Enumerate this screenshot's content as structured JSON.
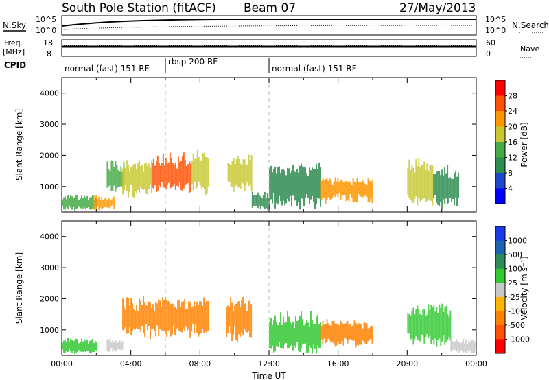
{
  "header": {
    "title": "South Pole Station (fitACF)",
    "beam": "Beam 07",
    "date": "27/May/2013"
  },
  "status_panels": {
    "nsky_label": "N.Sky",
    "nsearch_label": "N.Search",
    "freq_label_1": "Freq.",
    "freq_label_2": "[MHz]",
    "nave_label": "Nave",
    "cpid_label": "CPID",
    "left_ticks_top": [
      "10^5",
      "10^0"
    ],
    "right_ticks_top": [
      "10^5",
      "10^0"
    ],
    "left_ticks_freq": [
      "18",
      "8"
    ],
    "right_ticks_freq": [
      "60",
      "0"
    ],
    "cpid_segments": [
      {
        "label": "normal (fast) 151 RF",
        "start_h": 0,
        "end_h": 6
      },
      {
        "label": "rbsp 200 RF",
        "start_h": 6,
        "end_h": 12
      },
      {
        "label": "normal (fast) 151 RF",
        "start_h": 12,
        "end_h": 24
      }
    ]
  },
  "colors": {
    "power_scale": [
      "#0000ff",
      "#1e46c8",
      "#2d8c50",
      "#46aa46",
      "#c8c832",
      "#ff9600",
      "#ff5000",
      "#ff0000"
    ],
    "velocity_scale": [
      "#1a3ce6",
      "#1e64b4",
      "#2d8c55",
      "#32c832",
      "#c8c8c8",
      "#ffb400",
      "#ff8200",
      "#ff5000",
      "#ff0000"
    ]
  },
  "chart_data": [
    {
      "type": "heatmap",
      "name": "power",
      "xlabel": "",
      "ylabel": "Slant Range [km]",
      "xlim": [
        0,
        24
      ],
      "ylim": [
        180,
        4500
      ],
      "yticks": [
        "1000",
        "2000",
        "3000",
        "4000"
      ],
      "colorbar_label": "Power [dB]",
      "colorbar_ticks": [
        "28",
        "24",
        "20",
        "16",
        "12",
        "8",
        "4"
      ],
      "colorbar_range": [
        0,
        32
      ],
      "regions": [
        {
          "t0": 0.0,
          "t1": 2.0,
          "r0": 250,
          "r1": 700,
          "level": 12
        },
        {
          "t0": 1.8,
          "t1": 3.0,
          "r0": 250,
          "r1": 700,
          "level": 22
        },
        {
          "t0": 2.6,
          "t1": 3.6,
          "r0": 800,
          "r1": 1800,
          "level": 14
        },
        {
          "t0": 3.5,
          "t1": 5.2,
          "r0": 700,
          "r1": 1800,
          "level": 18
        },
        {
          "t0": 5.2,
          "t1": 7.5,
          "r0": 800,
          "r1": 2000,
          "level": 24
        },
        {
          "t0": 7.5,
          "t1": 8.5,
          "r0": 800,
          "r1": 2100,
          "level": 16
        },
        {
          "t0": 9.6,
          "t1": 11.0,
          "r0": 800,
          "r1": 2000,
          "level": 18
        },
        {
          "t0": 11.0,
          "t1": 12.0,
          "r0": 250,
          "r1": 800,
          "level": 10
        },
        {
          "t0": 12.0,
          "t1": 15.0,
          "r0": 300,
          "r1": 1800,
          "level": 8
        },
        {
          "t0": 15.0,
          "t1": 18.0,
          "r0": 500,
          "r1": 1300,
          "level": 20
        },
        {
          "t0": 20.0,
          "t1": 21.5,
          "r0": 500,
          "r1": 1800,
          "level": 16
        },
        {
          "t0": 21.5,
          "t1": 23.0,
          "r0": 300,
          "r1": 1600,
          "level": 10
        }
      ]
    },
    {
      "type": "heatmap",
      "name": "velocity",
      "xlabel": "Time UT",
      "ylabel": "Slant Range [km]",
      "xlim": [
        0,
        24
      ],
      "ylim": [
        180,
        4500
      ],
      "xticks": [
        "00:00",
        "04:00",
        "08:00",
        "12:00",
        "16:00",
        "20:00",
        "00:00"
      ],
      "yticks": [
        "1000",
        "2000",
        "3000",
        "4000"
      ],
      "colorbar_label": "Velocity [m s⁻¹]",
      "colorbar_ticks": [
        "1000",
        "500",
        "100",
        "25",
        "-25",
        "-100",
        "-500",
        "-1000"
      ],
      "regions": [
        {
          "t0": 0.0,
          "t1": 2.0,
          "r0": 250,
          "r1": 700,
          "level": 100
        },
        {
          "t0": 2.6,
          "t1": 3.5,
          "r0": 300,
          "r1": 700,
          "level": 25
        },
        {
          "t0": 3.5,
          "t1": 8.5,
          "r0": 800,
          "r1": 2000,
          "level": -300
        },
        {
          "t0": 9.5,
          "t1": 11.0,
          "r0": 700,
          "r1": 2000,
          "level": -250
        },
        {
          "t0": 12.0,
          "t1": 15.0,
          "r0": 250,
          "r1": 1500,
          "level": 150
        },
        {
          "t0": 15.0,
          "t1": 18.0,
          "r0": 500,
          "r1": 1300,
          "level": -200
        },
        {
          "t0": 20.0,
          "t1": 22.5,
          "r0": 500,
          "r1": 1800,
          "level": 60
        },
        {
          "t0": 22.5,
          "t1": 24.0,
          "r0": 250,
          "r1": 700,
          "level": 30
        }
      ]
    }
  ]
}
